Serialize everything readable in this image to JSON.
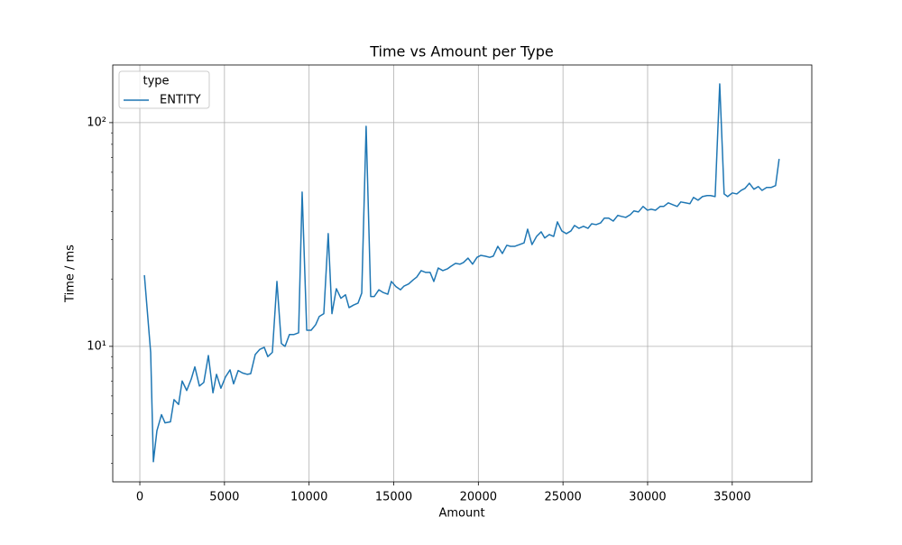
{
  "chart_data": {
    "type": "line",
    "title": "Time vs Amount per Type",
    "xlabel": "Amount",
    "ylabel": "Time / ms",
    "x": [
      270,
      640,
      800,
      1010,
      1280,
      1490,
      1810,
      2020,
      2290,
      2500,
      2770,
      3040,
      3250,
      3520,
      3780,
      4050,
      4320,
      4530,
      4790,
      5060,
      5330,
      5540,
      5810,
      6070,
      6340,
      6550,
      6820,
      7090,
      7350,
      7560,
      7830,
      8100,
      8360,
      8580,
      8840,
      9110,
      9380,
      9590,
      9860,
      10120,
      10390,
      10600,
      10870,
      11130,
      11350,
      11610,
      11880,
      12150,
      12360,
      12630,
      12890,
      13110,
      13370,
      13640,
      13850,
      14120,
      14380,
      14650,
      14860,
      15130,
      15400,
      15610,
      15880,
      16140,
      16360,
      16620,
      16890,
      17150,
      17370,
      17630,
      17900,
      18170,
      18380,
      18650,
      18910,
      19120,
      19390,
      19660,
      19920,
      20140,
      20400,
      20670,
      20880,
      21150,
      21420,
      21680,
      21900,
      22160,
      22430,
      22700,
      22910,
      23170,
      23440,
      23710,
      23920,
      24190,
      24450,
      24670,
      24930,
      25200,
      25470,
      25680,
      25940,
      26210,
      26480,
      26690,
      26960,
      27220,
      27440,
      27700,
      27970,
      28240,
      28450,
      28710,
      28980,
      29190,
      29460,
      29730,
      29990,
      30210,
      30470,
      30740,
      30950,
      31220,
      31480,
      31750,
      31960,
      32230,
      32500,
      32710,
      32980,
      33240,
      33510,
      33720,
      33990,
      34260,
      34520,
      34730,
      35000,
      35270,
      35530,
      35750,
      36010,
      36280,
      36540,
      36760,
      37030,
      37290,
      37560,
      37770
    ],
    "series": [
      {
        "name": "ENTITY",
        "color": "#1f77b4",
        "values": [
          20.8,
          9.4,
          3.05,
          4.2,
          4.95,
          4.55,
          4.6,
          5.78,
          5.5,
          7.0,
          6.35,
          7.15,
          8.1,
          6.65,
          6.9,
          9.1,
          6.2,
          7.5,
          6.5,
          7.3,
          7.85,
          6.8,
          7.8,
          7.6,
          7.5,
          7.55,
          9.2,
          9.7,
          9.9,
          9.0,
          9.4,
          19.5,
          10.3,
          10.0,
          11.3,
          11.3,
          11.5,
          48.9,
          11.8,
          11.8,
          12.5,
          13.6,
          14.0,
          31.9,
          14.0,
          18.1,
          16.4,
          17.0,
          14.9,
          15.3,
          15.6,
          17.3,
          96.3,
          16.7,
          16.7,
          17.9,
          17.4,
          17.1,
          19.5,
          18.5,
          17.9,
          18.6,
          19.0,
          19.8,
          20.4,
          21.8,
          21.4,
          21.4,
          19.5,
          22.4,
          21.8,
          22.2,
          22.8,
          23.5,
          23.3,
          23.7,
          24.8,
          23.3,
          25.0,
          25.5,
          25.3,
          25.0,
          25.3,
          28.0,
          26.0,
          28.3,
          28.0,
          28.0,
          28.5,
          29.0,
          33.4,
          28.5,
          31.0,
          32.5,
          30.5,
          31.6,
          31.0,
          36.0,
          32.8,
          31.9,
          32.8,
          34.7,
          33.7,
          34.4,
          33.7,
          35.3,
          35.0,
          35.6,
          37.4,
          37.4,
          36.3,
          38.5,
          38.1,
          37.7,
          38.8,
          40.3,
          39.9,
          42.2,
          40.6,
          41.0,
          40.6,
          42.2,
          42.2,
          43.8,
          43.0,
          42.2,
          44.2,
          43.8,
          43.4,
          46.3,
          45.0,
          46.7,
          47.2,
          47.2,
          46.7,
          149,
          48.0,
          46.7,
          48.5,
          48.0,
          49.8,
          50.8,
          53.6,
          50.4,
          51.8,
          49.8,
          51.3,
          51.3,
          52.3,
          68.8
        ]
      }
    ],
    "xlim": [
      -1600,
      39700
    ],
    "xticks": [
      0,
      5000,
      10000,
      15000,
      20000,
      25000,
      30000,
      35000
    ],
    "ylim": [
      2.48,
      181
    ],
    "yscale": "log",
    "yticks": [
      {
        "value": 10,
        "label": "10¹"
      },
      {
        "value": 100,
        "label": "10²"
      }
    ],
    "yminorticks": [
      3,
      4,
      5,
      6,
      7,
      8,
      9,
      20,
      30,
      40,
      50,
      60,
      70,
      80,
      90
    ],
    "grid": true,
    "legend_title": "type",
    "legend": "upper left"
  }
}
